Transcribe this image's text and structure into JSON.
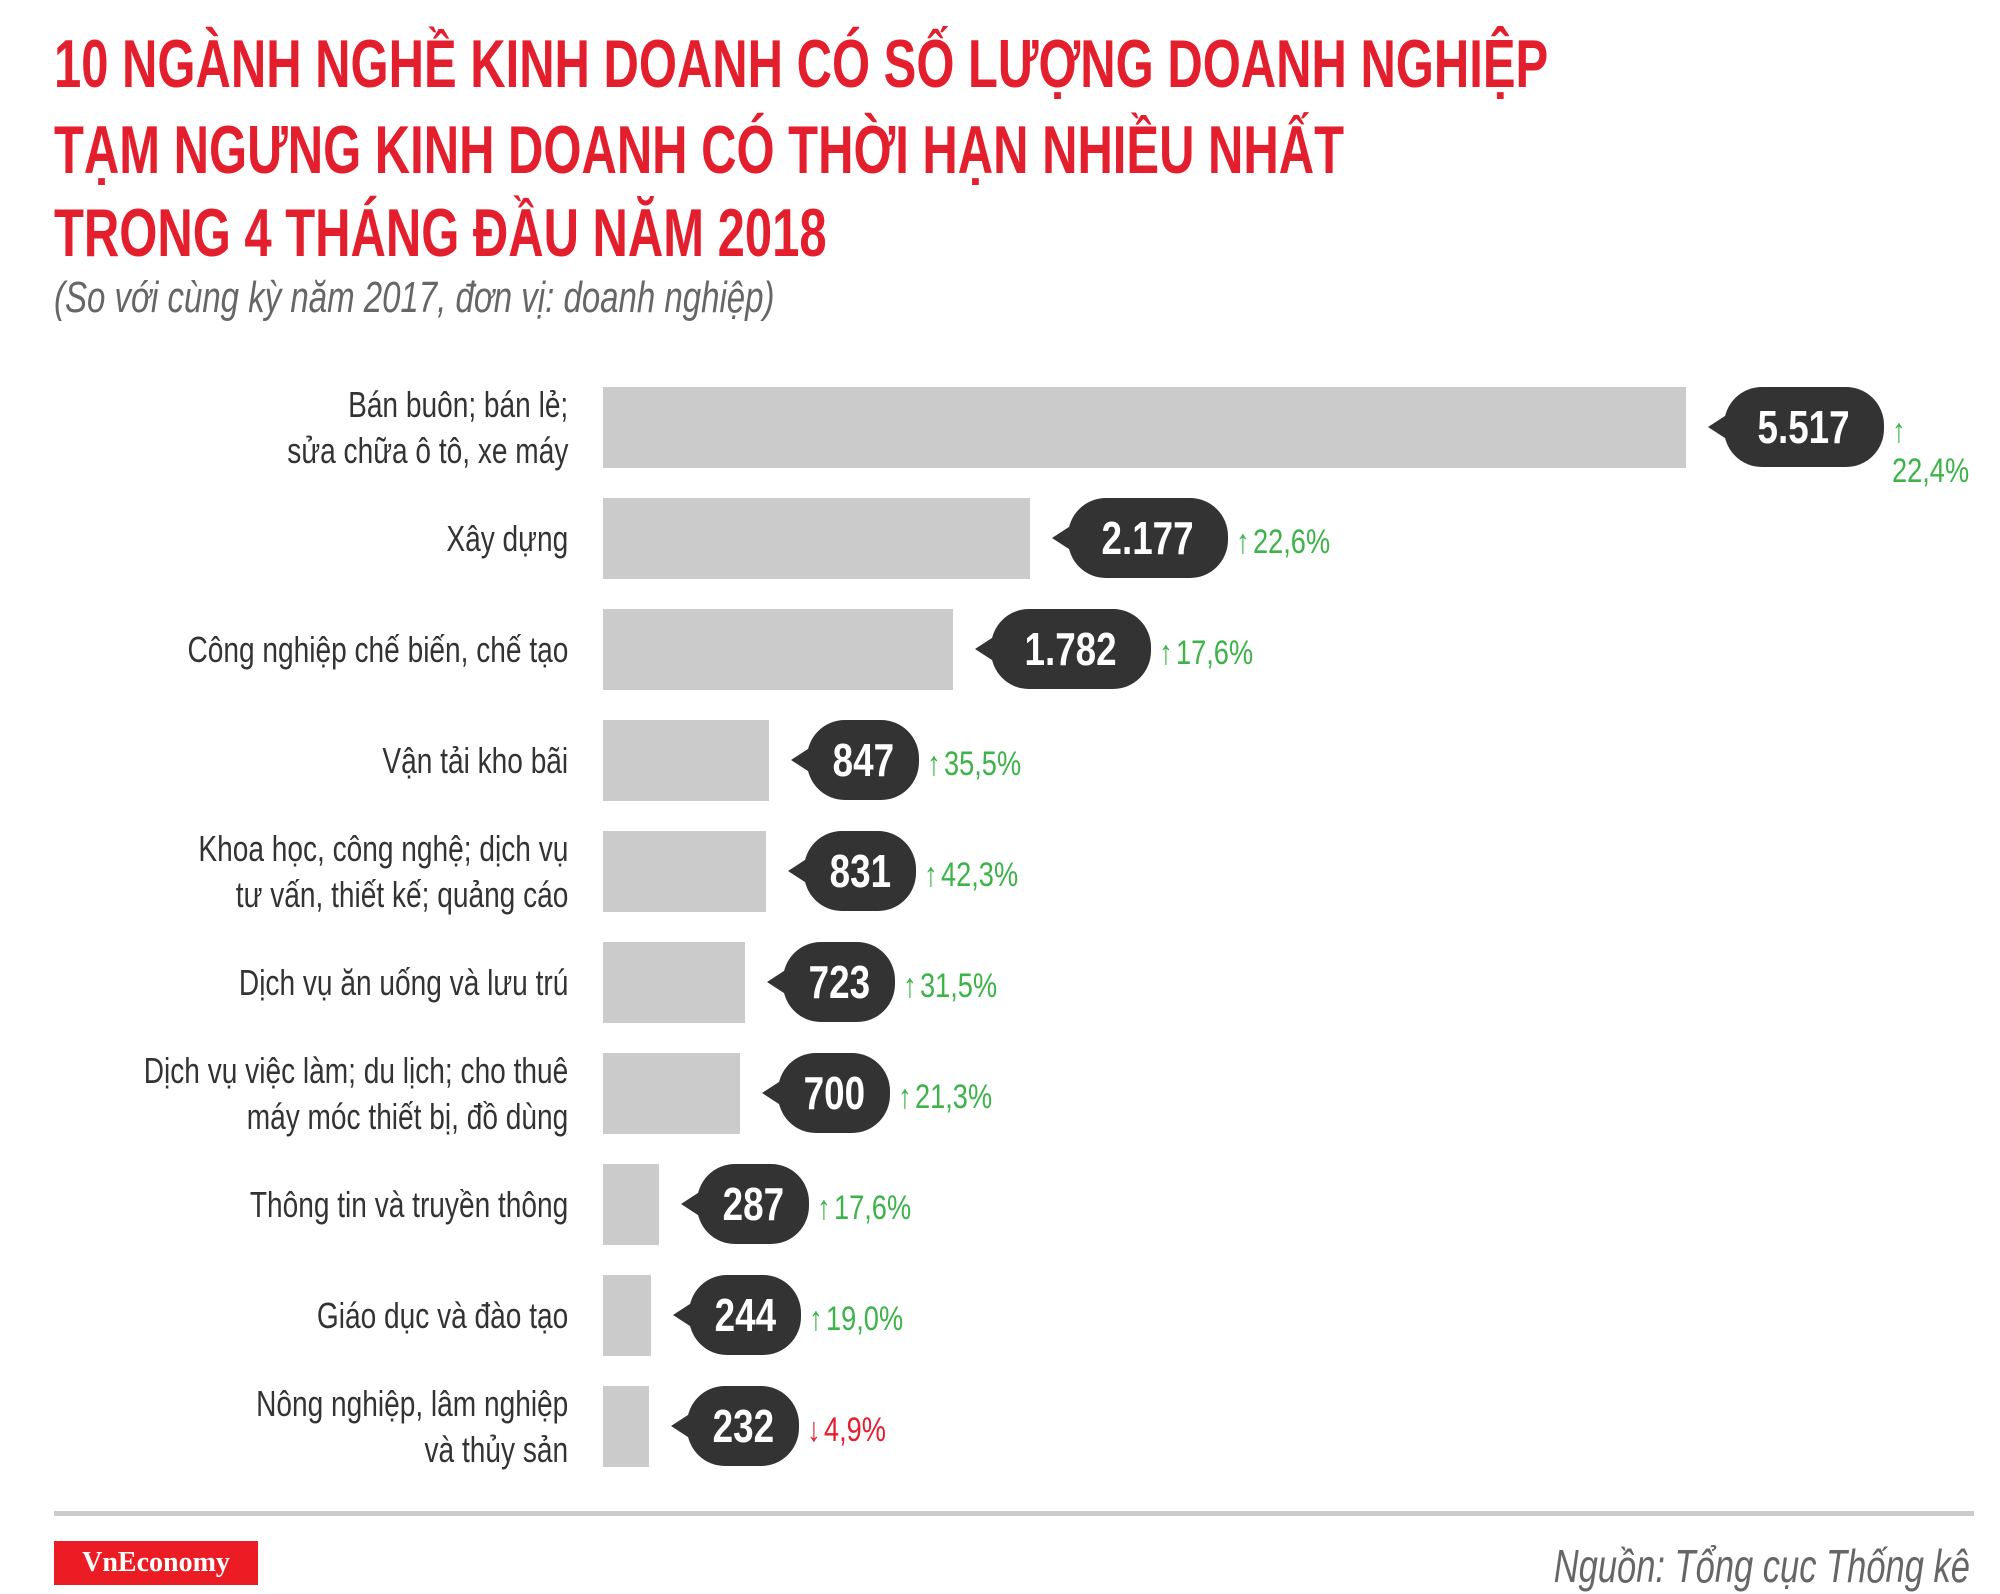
{
  "chart_data": {
    "type": "bar",
    "orientation": "horizontal",
    "title": [
      "10 NGÀNH NGHỀ KINH DOANH CÓ SỐ LƯỢNG DOANH NGHIỆP",
      "TẠM NGƯNG KINH DOANH CÓ THỜI HẠN NHIỀU NHẤT",
      "TRONG 4 THÁNG ĐẦU NĂM 2018"
    ],
    "subtitle": "(So với cùng kỳ năm 2017, đơn vị: doanh nghiệp)",
    "categories": [
      [
        "Bán buôn; bán lẻ;",
        "sửa chữa ô tô, xe máy"
      ],
      [
        "Xây dựng"
      ],
      [
        "Công nghiệp chế biến, chế tạo"
      ],
      [
        "Vận tải kho bãi"
      ],
      [
        "Khoa học, công nghệ; dịch vụ",
        "tư vấn, thiết kế; quảng cáo"
      ],
      [
        "Dịch vụ ăn uống và lưu trú"
      ],
      [
        "Dịch vụ việc làm; du lịch; cho thuê",
        "máy móc thiết bị, đồ dùng"
      ],
      [
        "Thông tin và truyền thông"
      ],
      [
        "Giáo dục và đào tạo"
      ],
      [
        "Nông nghiệp, lâm nghiệp",
        "và thủy sản"
      ]
    ],
    "values": [
      5517,
      2177,
      1782,
      847,
      831,
      723,
      700,
      287,
      244,
      232
    ],
    "value_labels": [
      "5.517",
      "2.177",
      "1.782",
      "847",
      "831",
      "723",
      "700",
      "287",
      "244",
      "232"
    ],
    "changes": [
      "22,4%",
      "22,6%",
      "17,6%",
      "35,5%",
      "42,3%",
      "31,5%",
      "21,3%",
      "17,6%",
      "19,0%",
      "4,9%"
    ],
    "change_directions": [
      "up",
      "up",
      "up",
      "up",
      "up",
      "up",
      "up",
      "up",
      "up",
      "down"
    ],
    "grid": false,
    "colors": {
      "title": "#e31e2d",
      "bar": "#cccbcc",
      "bubble": "#333333",
      "up": "#3db34a",
      "down": "#e31e2d"
    }
  },
  "footer": {
    "logo": "VnEconomy",
    "source": "Nguồn: Tổng cục Thống kê"
  }
}
